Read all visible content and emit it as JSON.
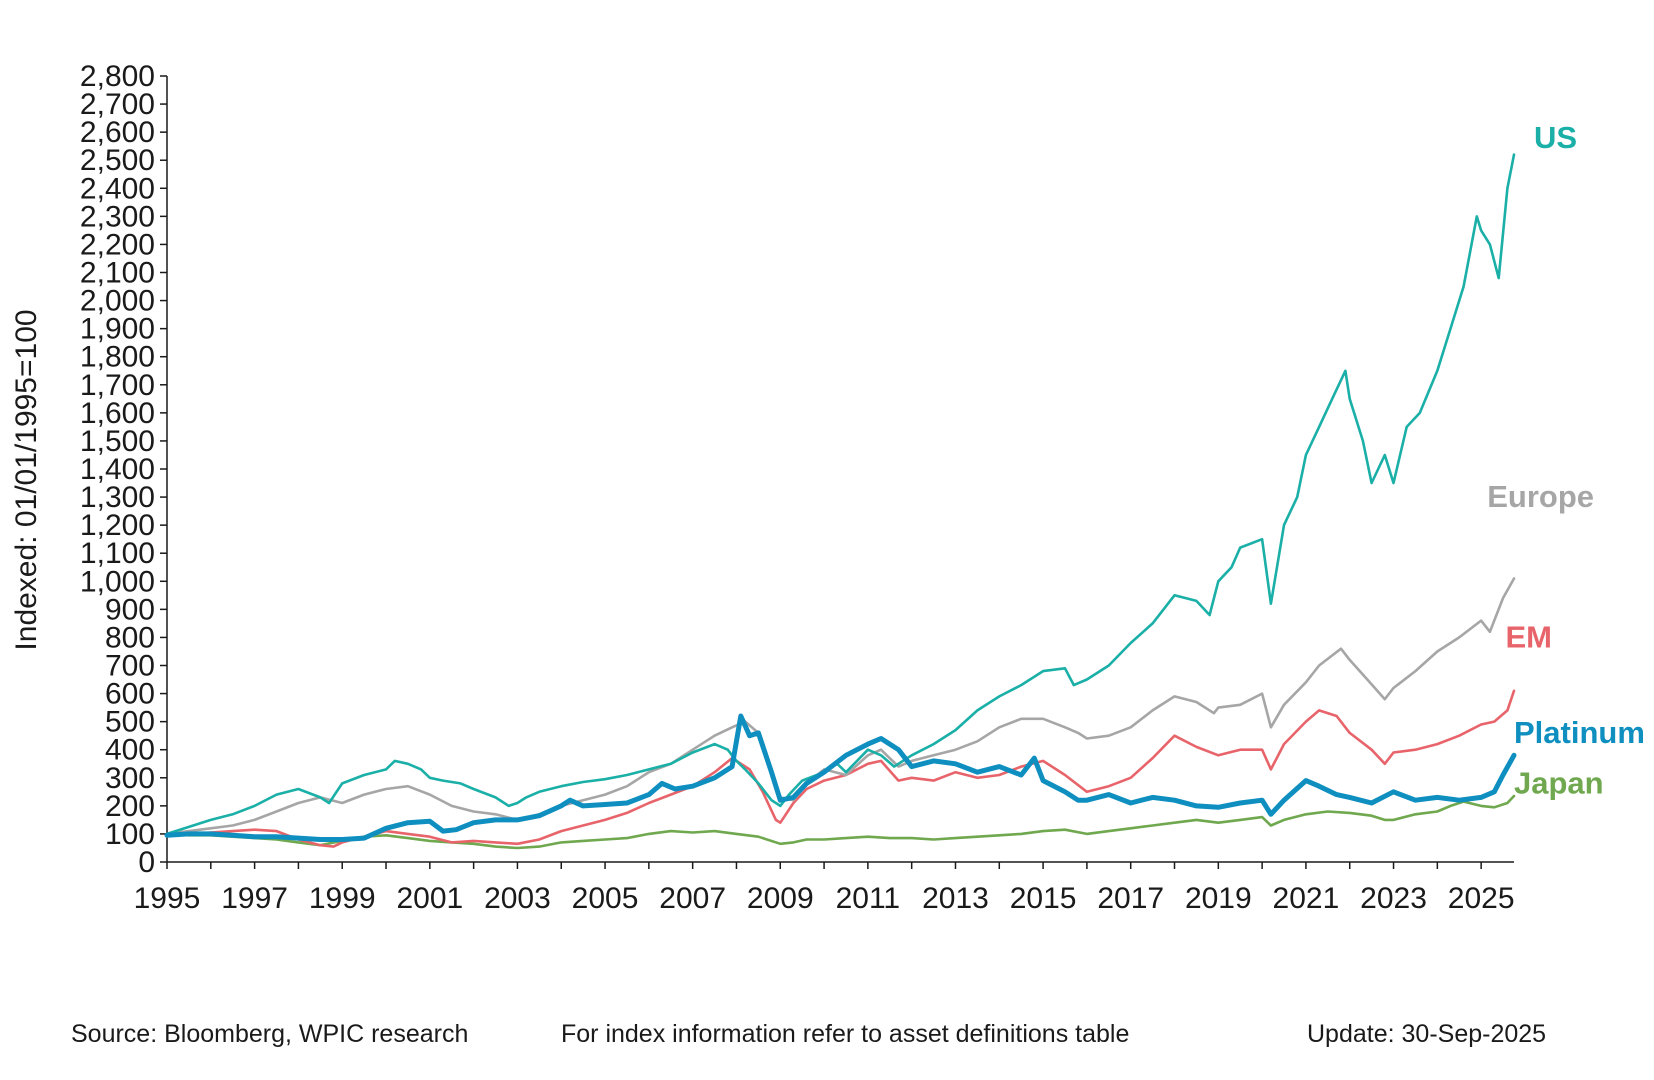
{
  "colors": {
    "us": "#1AAFA7",
    "europe": "#A6A6A6",
    "em": "#E8646B",
    "platinum": "#0E8FC0",
    "japan": "#6FA84E",
    "axis": "#1a1a1a"
  },
  "chart_data": {
    "type": "line",
    "xlabel": "",
    "ylabel": "Indexed: 01/01/1995=100",
    "xlim": [
      1995,
      2025.75
    ],
    "ylim": [
      0,
      2800
    ],
    "x_ticks": [
      1995,
      1997,
      1999,
      2001,
      2003,
      2005,
      2007,
      2009,
      2011,
      2013,
      2015,
      2017,
      2019,
      2021,
      2023,
      2025
    ],
    "x_tick_labels": [
      "1995",
      "1997",
      "1999",
      "2001",
      "2003",
      "2005",
      "2007",
      "2009",
      "2011",
      "2013",
      "2015",
      "2017",
      "2019",
      "2021",
      "2023",
      "2025"
    ],
    "y_ticks": [
      0,
      100,
      200,
      300,
      400,
      500,
      600,
      700,
      800,
      900,
      1000,
      1100,
      1200,
      1300,
      1400,
      1500,
      1600,
      1700,
      1800,
      1900,
      2000,
      2100,
      2200,
      2300,
      2400,
      2500,
      2600,
      2700,
      2800
    ],
    "y_tick_labels": [
      "0",
      "100",
      "200",
      "300",
      "400",
      "500",
      "600",
      "700",
      "800",
      "900",
      "1,000",
      "1,100",
      "1,200",
      "1,300",
      "1,400",
      "1,500",
      "1,600",
      "1,700",
      "1,800",
      "1,900",
      "2,000",
      "2,100",
      "2,200",
      "2,300",
      "2,400",
      "2,500",
      "2,600",
      "2,700",
      "2,800"
    ],
    "grid": false,
    "legend": "inline labels at right end of each series",
    "series": [
      {
        "name": "US",
        "color_key": "us",
        "label_year": 2025.8,
        "label_value": 2580,
        "x": [
          1995,
          1995.5,
          1996,
          1996.5,
          1997,
          1997.5,
          1998,
          1998.5,
          1998.7,
          1999,
          1999.5,
          2000,
          2000.2,
          2000.5,
          2000.8,
          2001,
          2001.3,
          2001.7,
          2002,
          2002.5,
          2002.8,
          2003,
          2003.2,
          2003.5,
          2004,
          2004.5,
          2005,
          2005.5,
          2006,
          2006.5,
          2007,
          2007.5,
          2007.8,
          2008,
          2008.2,
          2008.5,
          2008.8,
          2009,
          2009.2,
          2009.5,
          2010,
          2010.3,
          2010.5,
          2011,
          2011.3,
          2011.6,
          2011.8,
          2012,
          2012.5,
          2013,
          2013.5,
          2014,
          2014.5,
          2015,
          2015.5,
          2015.7,
          2016,
          2016.5,
          2017,
          2017.5,
          2018,
          2018.5,
          2018.8,
          2019,
          2019.3,
          2019.5,
          2020,
          2020.2,
          2020.5,
          2020.8,
          2021,
          2021.3,
          2021.6,
          2021.9,
          2022,
          2022.3,
          2022.5,
          2022.8,
          2023,
          2023.3,
          2023.6,
          2024,
          2024.3,
          2024.6,
          2024.9,
          2025,
          2025.2,
          2025.4,
          2025.6,
          2025.75
        ],
        "values": [
          100,
          125,
          150,
          170,
          200,
          240,
          260,
          230,
          210,
          280,
          310,
          330,
          360,
          350,
          330,
          300,
          290,
          280,
          260,
          230,
          200,
          210,
          230,
          250,
          270,
          285,
          295,
          310,
          330,
          350,
          390,
          420,
          400,
          360,
          330,
          280,
          220,
          200,
          240,
          290,
          320,
          350,
          320,
          400,
          380,
          340,
          360,
          380,
          420,
          470,
          540,
          590,
          630,
          680,
          690,
          630,
          650,
          700,
          780,
          850,
          950,
          930,
          880,
          1000,
          1050,
          1120,
          1150,
          920,
          1200,
          1300,
          1450,
          1550,
          1650,
          1750,
          1650,
          1500,
          1350,
          1450,
          1350,
          1550,
          1600,
          1750,
          1900,
          2050,
          2300,
          2250,
          2200,
          2080,
          2400,
          2520
        ]
      },
      {
        "name": "Europe",
        "color_key": "europe",
        "label_year": 2025.15,
        "label_value": 1300,
        "x": [
          1995,
          1995.5,
          1996,
          1996.5,
          1997,
          1997.5,
          1998,
          1998.5,
          1999,
          1999.5,
          2000,
          2000.5,
          2001,
          2001.5,
          2002,
          2002.5,
          2003,
          2003.5,
          2004,
          2004.5,
          2005,
          2005.5,
          2006,
          2006.5,
          2007,
          2007.5,
          2007.9,
          2008.2,
          2008.5,
          2008.8,
          2009,
          2009.3,
          2009.6,
          2010,
          2010.5,
          2011,
          2011.3,
          2011.7,
          2012,
          2012.5,
          2013,
          2013.5,
          2014,
          2014.5,
          2015,
          2015.5,
          2015.8,
          2016,
          2016.5,
          2017,
          2017.5,
          2018,
          2018.5,
          2018.9,
          2019,
          2019.5,
          2020,
          2020.2,
          2020.5,
          2021,
          2021.3,
          2021.8,
          2022,
          2022.4,
          2022.8,
          2023,
          2023.5,
          2024,
          2024.5,
          2025,
          2025.2,
          2025.5,
          2025.75
        ],
        "values": [
          100,
          110,
          120,
          130,
          150,
          180,
          210,
          230,
          210,
          240,
          260,
          270,
          240,
          200,
          180,
          170,
          150,
          170,
          200,
          220,
          240,
          270,
          320,
          350,
          400,
          450,
          480,
          500,
          460,
          330,
          230,
          220,
          280,
          330,
          310,
          380,
          400,
          340,
          360,
          380,
          400,
          430,
          480,
          510,
          510,
          480,
          460,
          440,
          450,
          480,
          540,
          590,
          570,
          530,
          550,
          560,
          600,
          480,
          560,
          640,
          700,
          760,
          720,
          650,
          580,
          620,
          680,
          750,
          800,
          860,
          820,
          940,
          1010
        ]
      },
      {
        "name": "EM",
        "color_key": "em",
        "label_year": 2025.15,
        "label_value": 800,
        "x": [
          1995,
          1995.5,
          1996,
          1996.5,
          1997,
          1997.5,
          1998,
          1998.5,
          1998.8,
          1999,
          1999.5,
          2000,
          2000.5,
          2001,
          2001.5,
          2002,
          2002.5,
          2003,
          2003.5,
          2004,
          2004.5,
          2005,
          2005.5,
          2006,
          2006.5,
          2007,
          2007.5,
          2007.9,
          2008.3,
          2008.6,
          2008.9,
          2009,
          2009.3,
          2009.6,
          2010,
          2010.5,
          2011,
          2011.3,
          2011.7,
          2012,
          2012.5,
          2013,
          2013.5,
          2014,
          2014.5,
          2015,
          2015.5,
          2016,
          2016.5,
          2017,
          2017.5,
          2018,
          2018.5,
          2019,
          2019.5,
          2020,
          2020.2,
          2020.5,
          2021,
          2021.3,
          2021.7,
          2022,
          2022.5,
          2022.8,
          2023,
          2023.5,
          2024,
          2024.5,
          2025,
          2025.3,
          2025.6,
          2025.75
        ],
        "values": [
          95,
          100,
          105,
          110,
          115,
          110,
          80,
          60,
          55,
          70,
          90,
          110,
          100,
          90,
          70,
          75,
          70,
          65,
          80,
          110,
          130,
          150,
          175,
          210,
          240,
          270,
          320,
          370,
          330,
          250,
          150,
          140,
          210,
          260,
          290,
          310,
          350,
          360,
          290,
          300,
          290,
          320,
          300,
          310,
          340,
          360,
          310,
          250,
          270,
          300,
          370,
          450,
          410,
          380,
          400,
          400,
          330,
          420,
          500,
          540,
          520,
          460,
          400,
          350,
          390,
          400,
          420,
          450,
          490,
          500,
          540,
          610
        ]
      },
      {
        "name": "Platinum",
        "color_key": "platinum",
        "label_year": 2025.8,
        "label_value": 460,
        "thick": true,
        "x": [
          1995,
          1995.5,
          1996,
          1996.5,
          1997,
          1997.5,
          1998,
          1998.5,
          1999,
          1999.5,
          2000,
          2000.5,
          2001,
          2001.3,
          2001.6,
          2002,
          2002.5,
          2003,
          2003.5,
          2004,
          2004.2,
          2004.5,
          2005,
          2005.5,
          2006,
          2006.3,
          2006.6,
          2007,
          2007.5,
          2007.9,
          2008.1,
          2008.3,
          2008.5,
          2008.8,
          2009,
          2009.3,
          2009.6,
          2010,
          2010.5,
          2011,
          2011.3,
          2011.7,
          2012,
          2012.5,
          2013,
          2013.5,
          2014,
          2014.5,
          2014.8,
          2015,
          2015.5,
          2015.8,
          2016,
          2016.5,
          2017,
          2017.5,
          2018,
          2018.5,
          2019,
          2019.5,
          2020,
          2020.2,
          2020.5,
          2021,
          2021.3,
          2021.7,
          2022,
          2022.5,
          2023,
          2023.5,
          2024,
          2024.5,
          2025,
          2025.3,
          2025.5,
          2025.75
        ],
        "values": [
          95,
          100,
          100,
          95,
          90,
          90,
          85,
          80,
          80,
          85,
          120,
          140,
          145,
          110,
          115,
          140,
          150,
          150,
          165,
          200,
          220,
          200,
          205,
          210,
          240,
          280,
          260,
          270,
          300,
          340,
          520,
          450,
          460,
          320,
          220,
          230,
          280,
          320,
          380,
          420,
          440,
          400,
          340,
          360,
          350,
          320,
          340,
          310,
          370,
          290,
          250,
          220,
          220,
          240,
          210,
          230,
          220,
          200,
          195,
          210,
          220,
          170,
          220,
          290,
          270,
          240,
          230,
          210,
          250,
          220,
          230,
          220,
          230,
          250,
          310,
          380
        ]
      },
      {
        "name": "Japan",
        "color_key": "japan",
        "label_year": 2025.8,
        "label_value": 280,
        "x": [
          1995,
          1995.5,
          1996,
          1996.5,
          1997,
          1997.5,
          1998,
          1998.5,
          1999,
          1999.5,
          2000,
          2000.5,
          2001,
          2001.5,
          2002,
          2002.5,
          2003,
          2003.5,
          2004,
          2004.5,
          2005,
          2005.5,
          2006,
          2006.5,
          2007,
          2007.5,
          2008,
          2008.5,
          2009,
          2009.3,
          2009.6,
          2010,
          2010.5,
          2011,
          2011.5,
          2012,
          2012.5,
          2013,
          2013.5,
          2014,
          2014.5,
          2015,
          2015.5,
          2016,
          2016.5,
          2017,
          2017.5,
          2018,
          2018.5,
          2019,
          2019.5,
          2020,
          2020.2,
          2020.5,
          2021,
          2021.5,
          2022,
          2022.5,
          2022.8,
          2023,
          2023.5,
          2024,
          2024.3,
          2024.6,
          2025,
          2025.3,
          2025.6,
          2025.75
        ],
        "values": [
          100,
          95,
          95,
          90,
          85,
          80,
          70,
          60,
          75,
          90,
          95,
          85,
          75,
          70,
          65,
          55,
          50,
          55,
          70,
          75,
          80,
          85,
          100,
          110,
          105,
          110,
          100,
          90,
          65,
          70,
          80,
          80,
          85,
          90,
          85,
          85,
          80,
          85,
          90,
          95,
          100,
          110,
          115,
          100,
          110,
          120,
          130,
          140,
          150,
          140,
          150,
          160,
          130,
          150,
          170,
          180,
          175,
          165,
          150,
          150,
          170,
          180,
          200,
          215,
          200,
          195,
          210,
          235
        ]
      }
    ]
  },
  "footer": {
    "source": "Source: Bloomberg, WPIC research",
    "note": "For index information refer to asset definitions table",
    "update": "Update: 30-Sep-2025"
  }
}
